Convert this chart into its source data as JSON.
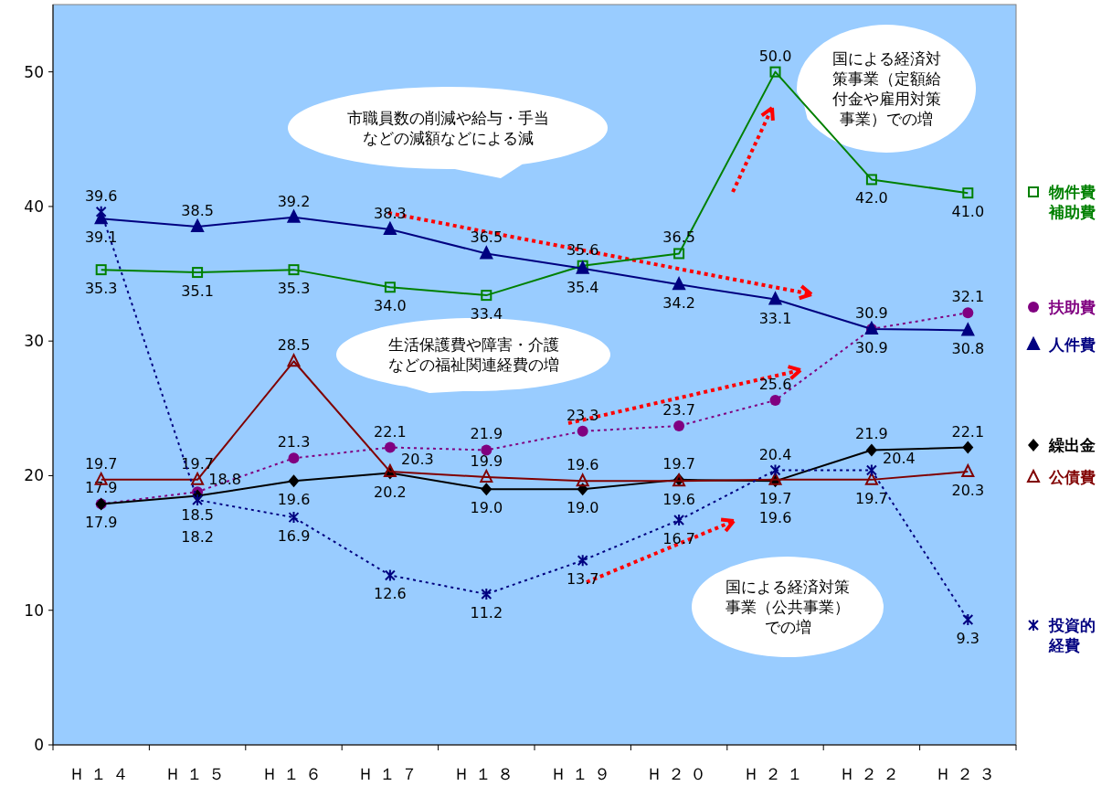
{
  "chart_data": {
    "type": "line",
    "categories": [
      "Ｈ１４",
      "Ｈ１５",
      "Ｈ１６",
      "Ｈ１７",
      "Ｈ１８",
      "Ｈ１９",
      "Ｈ２０",
      "Ｈ２１",
      "Ｈ２２",
      "Ｈ２３"
    ],
    "series": [
      {
        "name": "物件費補助費",
        "color": "#008000",
        "marker": "square",
        "line_style": "solid",
        "values": [
          35.3,
          35.1,
          35.3,
          34.0,
          33.4,
          35.6,
          36.5,
          50.0,
          42.0,
          41.0
        ],
        "value_labels": [
          "35.3",
          "35.1",
          "35.3",
          "34.0",
          "33.4",
          "35.6",
          "36.5",
          "50.0",
          "42.0",
          "41.0"
        ]
      },
      {
        "name": "扶助費",
        "color": "#800080",
        "marker": "circle",
        "line_style": "dotted",
        "values": [
          17.9,
          18.8,
          21.3,
          22.1,
          21.9,
          23.3,
          23.7,
          25.6,
          30.9,
          32.1
        ],
        "value_labels": [
          "17.9",
          "18.8",
          "21.3",
          "22.1",
          "21.9",
          "23.3",
          "23.7",
          "25.6",
          "30.9",
          "32.1"
        ]
      },
      {
        "name": "人件費",
        "color": "#000080",
        "marker": "triangle",
        "line_style": "solid",
        "values": [
          39.1,
          38.5,
          39.2,
          38.3,
          36.5,
          35.4,
          34.2,
          33.1,
          30.9,
          30.8
        ],
        "value_labels": [
          "39.1",
          "38.5",
          "39.2",
          "38.3",
          "36.5",
          "35.4",
          "34.2",
          "33.1",
          "30.9",
          "30.8"
        ]
      },
      {
        "name": "繰出金",
        "color": "#000000",
        "marker": "diamond",
        "line_style": "solid",
        "values": [
          17.9,
          18.5,
          19.6,
          20.2,
          19.0,
          19.0,
          19.7,
          19.6,
          21.9,
          22.1
        ],
        "value_labels": [
          "17.9",
          "18.5",
          "19.6",
          "20.2",
          "19.0",
          "19.0",
          "19.7",
          "19.6",
          "21.9",
          "22.1"
        ]
      },
      {
        "name": "公債費",
        "color": "#800000",
        "marker": "triangle",
        "line_style": "solid",
        "values": [
          19.7,
          19.7,
          28.5,
          20.3,
          19.9,
          19.6,
          19.6,
          19.7,
          19.7,
          20.3
        ],
        "value_labels": [
          "19.7",
          "19.7",
          "28.5",
          "20.3",
          "19.9",
          "19.6",
          "19.6",
          "19.7",
          "19.7",
          "20.3"
        ]
      },
      {
        "name": "投資的経費",
        "color": "#000080",
        "marker": "cross",
        "line_style": "dotted",
        "values": [
          39.6,
          18.2,
          16.9,
          12.6,
          11.2,
          13.7,
          16.7,
          20.4,
          20.4,
          9.3
        ],
        "value_labels": [
          "39.6",
          "18.2",
          "16.9",
          "12.6",
          "11.2",
          "13.7",
          "16.7",
          "20.4",
          "20.4",
          "9.3"
        ]
      }
    ],
    "ylim": [
      0,
      55
    ],
    "yticks": [
      0,
      10,
      20,
      30,
      40,
      50
    ],
    "grid": false,
    "legend": "right",
    "annotations": [
      "市職員数の削減や給与・手当などの減額などによる減",
      "国による経済対策事業（定額給付金や雇用対策事業）での増",
      "生活保護費や障害・介護などの福祉関連経費の増",
      "国による経済対策事業（公共事業）での増"
    ]
  }
}
